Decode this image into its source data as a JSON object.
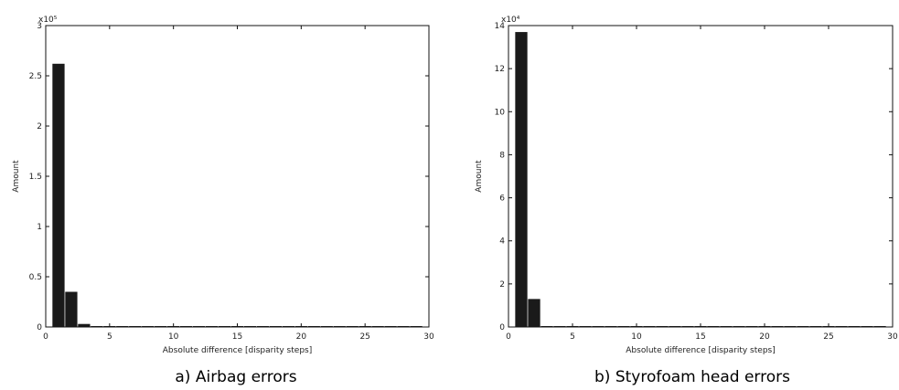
{
  "chart_data": [
    {
      "type": "bar",
      "caption": "a) Airbag errors",
      "exponent_label": "x10⁵",
      "xlabel": "Absolute difference [disparity steps]",
      "ylabel": "Amount",
      "xlim": [
        0,
        30
      ],
      "ylim": [
        0,
        3
      ],
      "xticks": [
        0,
        5,
        10,
        15,
        20,
        25,
        30
      ],
      "yticks": [
        0,
        0.5,
        1,
        1.5,
        2,
        2.5,
        3
      ],
      "x": [
        1,
        2,
        3,
        4,
        5,
        6,
        7,
        8,
        9,
        10,
        11,
        12,
        13,
        14,
        15,
        16,
        17,
        18,
        19,
        20,
        21,
        22,
        23,
        24,
        25,
        26,
        27,
        28,
        29
      ],
      "values": [
        2.62,
        0.35,
        0.03,
        0.003,
        0.002,
        0.002,
        0.002,
        0.002,
        0.002,
        0.002,
        0.002,
        0.002,
        0.002,
        0.002,
        0.002,
        0.002,
        0.002,
        0.002,
        0.002,
        0.002,
        0.002,
        0.002,
        0.002,
        0.002,
        0.002,
        0.002,
        0.002,
        0.002,
        0.002
      ],
      "bar_color": "#1a1a1a"
    },
    {
      "type": "bar",
      "caption": "b) Styrofoam head errors",
      "exponent_label": "x10⁴",
      "xlabel": "Absolute difference [disparity steps]",
      "ylabel": "Amount",
      "xlim": [
        0,
        30
      ],
      "ylim": [
        0,
        14
      ],
      "xticks": [
        0,
        5,
        10,
        15,
        20,
        25,
        30
      ],
      "yticks": [
        0,
        2,
        4,
        6,
        8,
        10,
        12,
        14
      ],
      "x": [
        1,
        2,
        3,
        4,
        5,
        6,
        7,
        8,
        9,
        10,
        11,
        12,
        13,
        14,
        15,
        16,
        17,
        18,
        19,
        20,
        21,
        22,
        23,
        24,
        25,
        26,
        27,
        28,
        29
      ],
      "values": [
        13.7,
        1.3,
        0.01,
        0.01,
        0.01,
        0.01,
        0.01,
        0.01,
        0.01,
        0.01,
        0.01,
        0.01,
        0.01,
        0.01,
        0.01,
        0.01,
        0.01,
        0.01,
        0.01,
        0.01,
        0.01,
        0.01,
        0.01,
        0.01,
        0.01,
        0.01,
        0.01,
        0.01,
        0.01
      ],
      "bar_color": "#1a1a1a"
    }
  ]
}
